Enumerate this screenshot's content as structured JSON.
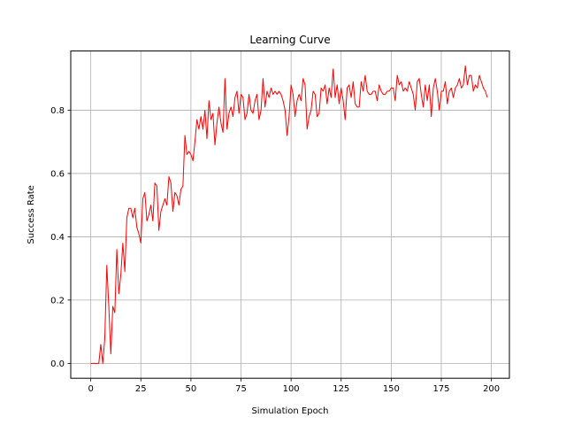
{
  "chart_data": {
    "type": "line",
    "title": "Learning Curve",
    "xlabel": "Simulation Epoch",
    "ylabel": "Success Rate",
    "xlim": [
      -10,
      209
    ],
    "ylim": [
      -0.047,
      0.987
    ],
    "grid": true,
    "xticks": [
      0,
      25,
      50,
      75,
      100,
      125,
      150,
      175,
      200
    ],
    "yticks": [
      0.0,
      0.2,
      0.4,
      0.6,
      0.8
    ],
    "ytick_labels": [
      "0.0",
      "0.2",
      "0.4",
      "0.6",
      "0.8"
    ],
    "series": [
      {
        "color": "#ff0000",
        "x_start": 0,
        "x_step": 1,
        "values": [
          0.0,
          0.0,
          0.0,
          0.0,
          0.0,
          0.06,
          0.0,
          0.08,
          0.31,
          0.18,
          0.03,
          0.18,
          0.16,
          0.36,
          0.22,
          0.28,
          0.38,
          0.29,
          0.46,
          0.49,
          0.49,
          0.46,
          0.49,
          0.43,
          0.41,
          0.38,
          0.52,
          0.54,
          0.45,
          0.47,
          0.5,
          0.45,
          0.57,
          0.56,
          0.42,
          0.48,
          0.5,
          0.52,
          0.5,
          0.59,
          0.57,
          0.48,
          0.54,
          0.53,
          0.5,
          0.55,
          0.56,
          0.72,
          0.66,
          0.67,
          0.66,
          0.64,
          0.7,
          0.77,
          0.74,
          0.78,
          0.74,
          0.8,
          0.71,
          0.83,
          0.77,
          0.79,
          0.69,
          0.76,
          0.81,
          0.76,
          0.73,
          0.9,
          0.74,
          0.79,
          0.81,
          0.78,
          0.84,
          0.86,
          0.79,
          0.85,
          0.84,
          0.77,
          0.79,
          0.85,
          0.8,
          0.79,
          0.83,
          0.85,
          0.77,
          0.8,
          0.9,
          0.81,
          0.86,
          0.84,
          0.87,
          0.85,
          0.86,
          0.85,
          0.86,
          0.85,
          0.83,
          0.8,
          0.72,
          0.78,
          0.88,
          0.85,
          0.78,
          0.83,
          0.85,
          0.83,
          0.9,
          0.88,
          0.74,
          0.78,
          0.8,
          0.86,
          0.85,
          0.78,
          0.79,
          0.87,
          0.86,
          0.88,
          0.82,
          0.87,
          0.84,
          0.93,
          0.84,
          0.88,
          0.82,
          0.87,
          0.83,
          0.77,
          0.87,
          0.88,
          0.84,
          0.89,
          0.82,
          0.81,
          0.81,
          0.89,
          0.86,
          0.91,
          0.86,
          0.85,
          0.85,
          0.86,
          0.86,
          0.83,
          0.88,
          0.86,
          0.85,
          0.85,
          0.86,
          0.86,
          0.87,
          0.87,
          0.83,
          0.91,
          0.88,
          0.89,
          0.86,
          0.87,
          0.86,
          0.89,
          0.87,
          0.85,
          0.8,
          0.89,
          0.9,
          0.85,
          0.81,
          0.88,
          0.83,
          0.88,
          0.78,
          0.87,
          0.9,
          0.86,
          0.8,
          0.86,
          0.86,
          0.89,
          0.82,
          0.86,
          0.87,
          0.84,
          0.87,
          0.88,
          0.9,
          0.87,
          0.88,
          0.94,
          0.88,
          0.91,
          0.91,
          0.86,
          0.88,
          0.87,
          0.91,
          0.89,
          0.87,
          0.86,
          0.84
        ]
      }
    ]
  }
}
